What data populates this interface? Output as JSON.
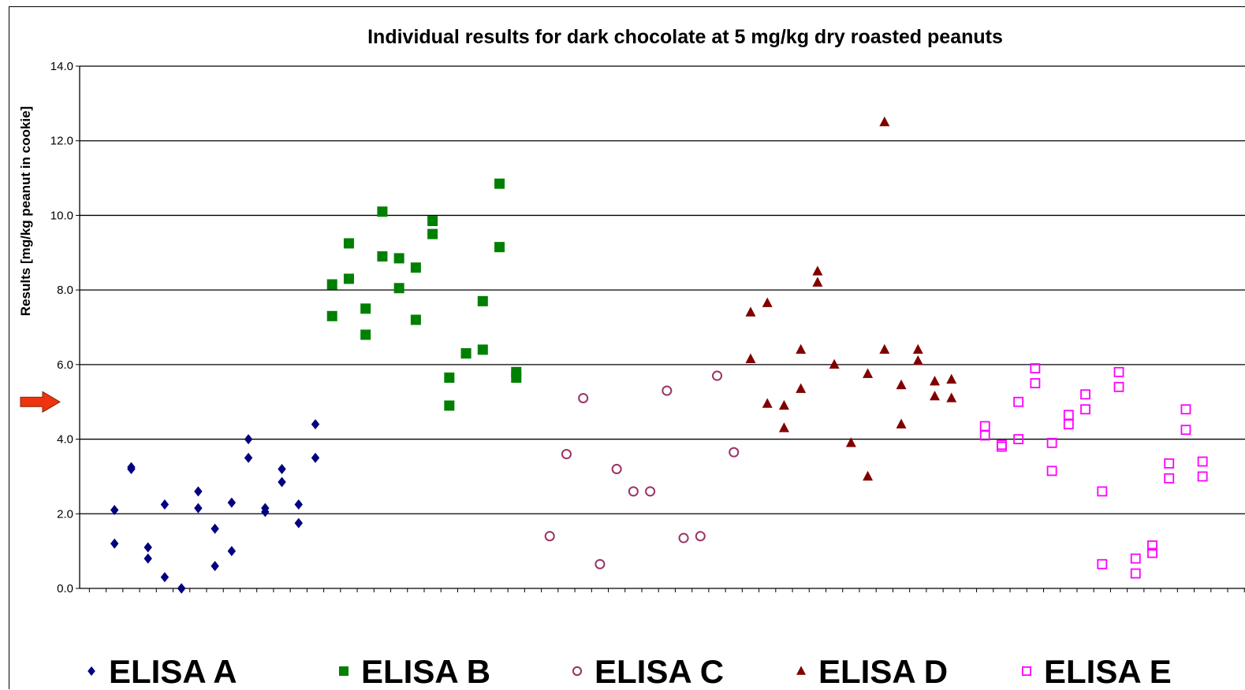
{
  "chart_data": {
    "type": "scatter",
    "title": "Individual results for dark chocolate at 5 mg/kg dry roasted peanuts",
    "xlabel": "",
    "ylabel": "Results [mg/kg peanut in cookie]",
    "ylim": [
      0,
      14
    ],
    "yticks": [
      "0.0",
      "2.0",
      "4.0",
      "6.0",
      "8.0",
      "10.0",
      "12.0",
      "14.0"
    ],
    "x_range": [
      0,
      70
    ],
    "grid": "horizontal",
    "legend_position": "bottom",
    "reference_marker": {
      "value": 5.0,
      "shape": "arrow",
      "color": "#ee3311"
    },
    "series": [
      {
        "name": "ELISA A",
        "marker": "diamond",
        "color": "#000080",
        "x": [
          1,
          1,
          2,
          2,
          3,
          3,
          4,
          4,
          5,
          5,
          5,
          6,
          6,
          7,
          7,
          8,
          8,
          9,
          9,
          10,
          10,
          11,
          11,
          12,
          12,
          13,
          13
        ],
        "y": [
          2.1,
          1.2,
          3.2,
          3.25,
          1.1,
          0.8,
          2.25,
          0.3,
          0.0,
          0.0,
          0.0,
          2.6,
          2.15,
          1.6,
          0.6,
          2.3,
          1.0,
          4.0,
          3.5,
          2.15,
          2.05,
          3.2,
          2.85,
          2.25,
          1.75,
          4.4,
          3.5
        ]
      },
      {
        "name": "ELISA B",
        "marker": "square",
        "color": "#008000",
        "x": [
          14,
          14,
          15,
          15,
          16,
          16,
          17,
          17,
          18,
          18,
          19,
          19,
          20,
          20,
          21,
          21,
          22,
          22,
          23,
          23,
          24,
          24,
          25,
          25
        ],
        "y": [
          8.15,
          7.3,
          9.25,
          8.3,
          7.5,
          6.8,
          10.1,
          8.9,
          8.85,
          8.05,
          8.6,
          7.2,
          9.85,
          9.5,
          5.65,
          4.9,
          6.3,
          6.3,
          7.7,
          6.4,
          10.85,
          9.15,
          5.8,
          5.65
        ]
      },
      {
        "name": "ELISA C",
        "marker": "circle-open",
        "color": "#993366",
        "x": [
          27,
          28,
          29,
          30,
          31,
          32,
          33,
          34,
          35,
          36,
          37,
          38
        ],
        "y": [
          1.4,
          3.6,
          5.1,
          0.65,
          3.2,
          2.6,
          2.6,
          5.3,
          1.35,
          1.4,
          5.7,
          3.65
        ]
      },
      {
        "name": "ELISA D",
        "marker": "triangle",
        "color": "#800000",
        "x": [
          39,
          39,
          40,
          40,
          41,
          41,
          42,
          42,
          43,
          43,
          44,
          45,
          46,
          46,
          47,
          47,
          48,
          48,
          49,
          49,
          50,
          50,
          51,
          51
        ],
        "y": [
          7.4,
          6.15,
          7.65,
          4.95,
          4.9,
          4.3,
          6.4,
          5.35,
          8.5,
          8.2,
          6.0,
          3.9,
          5.75,
          3.0,
          12.5,
          6.4,
          5.45,
          4.4,
          6.4,
          6.1,
          5.55,
          5.15,
          5.6,
          5.1
        ]
      },
      {
        "name": "ELISA E",
        "marker": "square-open",
        "color": "#ff00ff",
        "x": [
          53,
          53,
          54,
          54,
          55,
          55,
          56,
          56,
          57,
          57,
          58,
          58,
          59,
          59,
          60,
          60,
          61,
          61,
          62,
          62,
          63,
          63,
          64,
          64,
          65,
          65,
          66,
          66
        ],
        "y": [
          4.35,
          4.1,
          3.85,
          3.8,
          5.0,
          4.0,
          5.9,
          5.5,
          3.9,
          3.15,
          4.65,
          4.4,
          5.2,
          4.8,
          2.6,
          0.65,
          5.8,
          5.4,
          0.8,
          0.4,
          1.15,
          0.95,
          3.35,
          2.95,
          4.8,
          4.25,
          3.4,
          3.0
        ]
      }
    ]
  }
}
